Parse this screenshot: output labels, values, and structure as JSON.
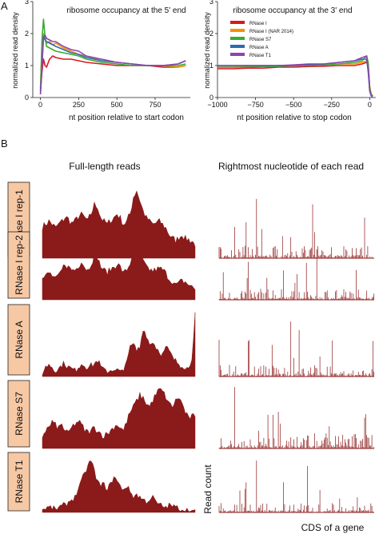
{
  "figure": {
    "panel_a_letter": "A",
    "panel_b_letter": "B",
    "colors": {
      "rnase_i": "#d7191c",
      "rnase_i_nar": "#f39200",
      "rnase_s7": "#3aaa35",
      "rnase_a": "#2b6cb0",
      "rnase_t1": "#8e44ad",
      "bar": "#8b1a1a",
      "label_box": "#f7c8a4"
    }
  },
  "chart_data": [
    {
      "type": "line",
      "title": "ribosome occupancy at the 5' end",
      "xlabel": "nt position relative to start codon",
      "ylabel": "normalized read density",
      "xlim": [
        -50,
        980
      ],
      "ylim": [
        0,
        3
      ],
      "xticks": [
        "0",
        "250",
        "500",
        "750"
      ],
      "yticks": [
        "0",
        "1",
        "2",
        "3"
      ],
      "x": [
        0,
        10,
        20,
        30,
        40,
        60,
        80,
        100,
        150,
        200,
        250,
        300,
        400,
        500,
        600,
        700,
        800,
        900,
        950
      ],
      "series": [
        {
          "name": "RNase I",
          "values": [
            0.2,
            0.8,
            1.2,
            1.0,
            0.95,
            1.2,
            1.3,
            1.25,
            1.2,
            1.2,
            1.15,
            1.1,
            1.05,
            1.0,
            1.0,
            1.0,
            0.95,
            0.95,
            1.0
          ]
        },
        {
          "name": "RNase I (NAR 2014)",
          "values": [
            0.3,
            1.6,
            2.0,
            1.85,
            1.7,
            1.75,
            1.65,
            1.7,
            1.55,
            1.45,
            1.35,
            1.3,
            1.15,
            1.1,
            1.05,
            1.0,
            1.0,
            0.95,
            1.0
          ]
        },
        {
          "name": "RNase S7",
          "values": [
            0.2,
            1.8,
            2.45,
            1.9,
            1.6,
            1.55,
            1.5,
            1.45,
            1.4,
            1.35,
            1.3,
            1.2,
            1.1,
            1.05,
            1.0,
            1.0,
            1.0,
            1.0,
            1.05
          ]
        },
        {
          "name": "RNase A",
          "values": [
            0.1,
            1.0,
            1.9,
            1.8,
            1.75,
            1.7,
            1.65,
            1.6,
            1.5,
            1.4,
            1.35,
            1.25,
            1.15,
            1.1,
            1.05,
            1.0,
            1.0,
            1.05,
            1.15
          ]
        },
        {
          "name": "RNase T1",
          "values": [
            0.1,
            1.0,
            1.9,
            1.95,
            1.85,
            1.8,
            1.75,
            1.75,
            1.6,
            1.5,
            1.45,
            1.3,
            1.2,
            1.1,
            1.05,
            1.0,
            1.0,
            1.05,
            1.15
          ]
        }
      ]
    },
    {
      "type": "line",
      "title": "ribosome occupancy at the 3' end",
      "xlabel": "nt position relative to stop codon",
      "ylabel": "normalized read density",
      "xlim": [
        -1000,
        40
      ],
      "ylim": [
        0,
        3
      ],
      "xticks": [
        "−1000",
        "−750",
        "−500",
        "−250",
        "0"
      ],
      "yticks": [
        "0",
        "1",
        "2",
        "3"
      ],
      "legend": "top-left",
      "x": [
        -1000,
        -900,
        -800,
        -700,
        -600,
        -500,
        -400,
        -300,
        -200,
        -100,
        -50,
        -20,
        -10,
        0,
        10,
        20
      ],
      "series": [
        {
          "name": "RNase I",
          "values": [
            0.9,
            0.9,
            0.92,
            0.92,
            0.95,
            0.95,
            0.97,
            0.98,
            1.0,
            1.0,
            1.05,
            1.1,
            1.0,
            0.3,
            0.1,
            0.05
          ]
        },
        {
          "name": "RNase I (NAR 2014)",
          "values": [
            0.95,
            0.95,
            0.97,
            0.97,
            1.0,
            1.0,
            1.0,
            1.02,
            1.05,
            1.05,
            1.1,
            1.15,
            1.0,
            0.35,
            0.1,
            0.05
          ]
        },
        {
          "name": "RNase S7",
          "values": [
            0.95,
            0.95,
            0.95,
            0.97,
            0.97,
            1.0,
            1.0,
            1.02,
            1.05,
            1.1,
            1.15,
            1.3,
            1.1,
            0.3,
            0.1,
            0.05
          ]
        },
        {
          "name": "RNase A",
          "values": [
            1.0,
            1.0,
            1.0,
            1.0,
            1.0,
            1.0,
            1.02,
            1.05,
            1.1,
            1.15,
            1.2,
            1.2,
            0.8,
            0.2,
            0.05,
            0.0
          ]
        },
        {
          "name": "RNase T1",
          "values": [
            1.0,
            1.0,
            1.0,
            1.0,
            1.0,
            1.02,
            1.05,
            1.05,
            1.1,
            1.15,
            1.25,
            1.3,
            0.9,
            0.2,
            0.05,
            0.0
          ]
        }
      ]
    },
    {
      "type": "area",
      "title": "Full-length reads",
      "rows": [
        "RNase I rep-1",
        "RNase I rep-2",
        "RNase A",
        "RNase S7",
        "RNase T1"
      ],
      "profiles": [
        [
          0.45,
          0.5,
          0.55,
          0.5,
          0.45,
          0.5,
          0.55,
          0.6,
          0.58,
          0.52,
          0.55,
          0.6,
          0.65,
          0.6,
          0.55,
          0.65,
          0.8,
          0.75,
          0.6,
          0.55,
          0.5,
          0.55,
          0.6,
          0.65,
          0.6,
          0.5,
          0.55,
          0.65,
          0.9,
          1.0,
          0.85,
          0.7,
          0.6,
          0.55,
          0.5,
          0.52,
          0.55,
          0.5,
          0.45,
          0.35,
          0.3,
          0.25,
          0.3,
          0.35,
          0.3,
          0.28,
          0.25,
          0.2
        ],
        [
          0.35,
          0.4,
          0.45,
          0.4,
          0.35,
          0.4,
          0.5,
          0.6,
          0.55,
          0.5,
          0.5,
          0.55,
          0.65,
          0.55,
          0.5,
          0.6,
          0.75,
          0.7,
          0.55,
          0.5,
          0.45,
          0.5,
          0.55,
          0.6,
          0.55,
          0.45,
          0.5,
          0.6,
          0.85,
          1.0,
          0.8,
          0.65,
          0.55,
          0.5,
          0.48,
          0.5,
          0.52,
          0.5,
          0.45,
          0.35,
          0.3,
          0.25,
          0.28,
          0.32,
          0.3,
          0.25,
          0.22,
          0.18
        ],
        [
          0.05,
          0.15,
          0.2,
          0.15,
          0.1,
          0.12,
          0.18,
          0.2,
          0.15,
          0.12,
          0.1,
          0.15,
          0.2,
          0.18,
          0.15,
          0.18,
          0.2,
          0.25,
          0.15,
          0.1,
          0.08,
          0.1,
          0.12,
          0.1,
          0.08,
          0.06,
          0.3,
          0.45,
          0.5,
          0.4,
          0.45,
          0.75,
          0.65,
          0.5,
          0.55,
          0.45,
          0.4,
          0.35,
          0.45,
          0.4,
          0.3,
          0.25,
          0.2,
          0.18,
          0.15,
          0.12,
          0.3,
          1.0
        ],
        [
          0.2,
          0.3,
          0.35,
          0.45,
          0.4,
          0.35,
          0.4,
          0.3,
          0.25,
          0.35,
          0.4,
          0.45,
          0.4,
          0.3,
          0.28,
          0.3,
          0.35,
          0.3,
          0.25,
          0.2,
          0.25,
          0.3,
          0.35,
          0.4,
          0.35,
          0.3,
          0.45,
          0.6,
          0.7,
          0.8,
          0.9,
          0.85,
          0.75,
          0.7,
          0.8,
          0.9,
          1.0,
          0.95,
          0.85,
          0.75,
          0.7,
          0.8,
          0.85,
          0.75,
          0.6,
          0.5,
          0.55,
          0.5
        ],
        [
          0.05,
          0.08,
          0.1,
          0.08,
          0.06,
          0.1,
          0.12,
          0.15,
          0.2,
          0.25,
          0.3,
          0.45,
          0.6,
          0.75,
          0.9,
          1.0,
          0.8,
          0.6,
          0.5,
          0.55,
          0.45,
          0.55,
          0.7,
          0.6,
          0.5,
          0.45,
          0.5,
          0.4,
          0.3,
          0.35,
          0.3,
          0.25,
          0.2,
          0.25,
          0.3,
          0.2,
          0.15,
          0.12,
          0.1,
          0.15,
          0.12,
          0.1,
          0.08,
          0.06,
          0.05,
          0.04,
          0.03,
          0.02
        ]
      ]
    },
    {
      "type": "bar",
      "title": "Rightmost nucleotide of each read",
      "xlabel": "CDS of a gene",
      "ylabel": "Read count",
      "rows": [
        "RNase I rep-1",
        "RNase I rep-2",
        "RNase A",
        "RNase S7",
        "RNase T1"
      ]
    }
  ]
}
